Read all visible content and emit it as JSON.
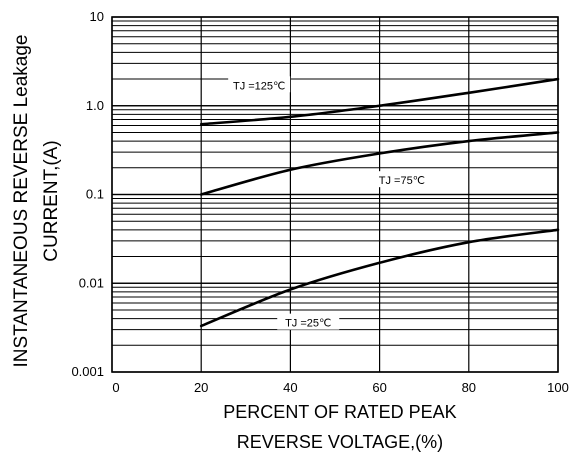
{
  "chart_data": {
    "type": "line",
    "xlabel": [
      "PERCENT OF RATED PEAK",
      "REVERSE VOLTAGE,(%)"
    ],
    "ylabel": [
      "INSTANTANEOUS REVERSE  Leakage",
      "CURRENT,(A)"
    ],
    "x_ticks": [
      "0",
      "20",
      "40",
      "60",
      "80",
      "100"
    ],
    "y_ticks": [
      "0.001",
      "0.01",
      "0.1",
      "1.0",
      "10"
    ],
    "xlim": [
      0,
      100
    ],
    "ylim": [
      0.001,
      10
    ],
    "yscale": "log",
    "grid": true,
    "series": [
      {
        "name": "TJ =125℃",
        "x": [
          20,
          40,
          60,
          80,
          100
        ],
        "y": [
          0.62,
          0.75,
          1.0,
          1.4,
          2.0
        ]
      },
      {
        "name": "TJ =75℃",
        "x": [
          20,
          40,
          60,
          80,
          100
        ],
        "y": [
          0.1,
          0.19,
          0.29,
          0.4,
          0.5
        ]
      },
      {
        "name": "TJ =25℃",
        "x": [
          20,
          40,
          60,
          80,
          100
        ],
        "y": [
          0.0033,
          0.0085,
          0.017,
          0.029,
          0.04
        ]
      }
    ]
  }
}
